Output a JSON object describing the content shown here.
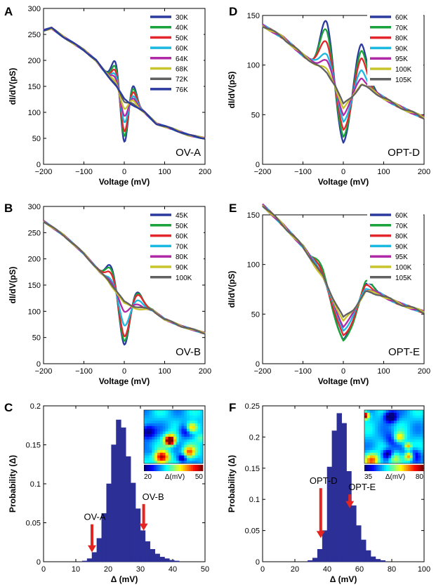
{
  "colors": {
    "axis": "#000000",
    "bar": "#2b2f96",
    "arrow": "#e32420",
    "series": [
      "#2b3a9e",
      "#1aa33a",
      "#e3262b",
      "#1bb8e0",
      "#b02aa8",
      "#c8c42c",
      "#616161",
      "#2b3a9e"
    ]
  },
  "chart_data": [
    {
      "panel": "A",
      "type": "line",
      "corner_label": "OV-A",
      "xlabel": "Voltage (mV)",
      "ylabel": "dI/dV(pS)",
      "xlim": [
        -200,
        200
      ],
      "ylim": [
        0,
        300
      ],
      "xticks": [
        -200,
        -100,
        0,
        100,
        200
      ],
      "yticks": [
        0,
        50,
        100,
        150,
        200,
        250,
        300
      ],
      "xtick_labels": [
        "−200",
        "−100",
        "0",
        "100",
        "200"
      ],
      "ytick_labels": [
        "0",
        "50",
        "100",
        "150",
        "200",
        "250",
        "300"
      ],
      "model": {
        "base": [
          [
            -200,
            258
          ],
          [
            -180,
            262
          ],
          [
            -150,
            245
          ],
          [
            -100,
            220
          ],
          [
            -70,
            200
          ],
          [
            -50,
            180
          ],
          [
            -35,
            165
          ],
          [
            -20,
            150
          ],
          [
            0,
            126
          ],
          [
            20,
            115
          ],
          [
            50,
            100
          ],
          [
            80,
            78
          ],
          [
            120,
            68
          ],
          [
            160,
            56
          ],
          [
            200,
            50
          ]
        ],
        "peak": [
          -20,
          10
        ],
        "dip": [
          0,
          10
        ],
        "peak2": [
          20,
          10
        ]
      },
      "series": [
        {
          "name": "30K",
          "peak": 55,
          "dip": 96,
          "peak2": 45
        },
        {
          "name": "40K",
          "peak": 45,
          "dip": 84,
          "peak2": 40
        },
        {
          "name": "50K",
          "peak": 35,
          "dip": 72,
          "peak2": 33
        },
        {
          "name": "60K",
          "peak": 24,
          "dip": 50,
          "peak2": 22
        },
        {
          "name": "64K",
          "peak": 17,
          "dip": 36,
          "peak2": 15
        },
        {
          "name": "68K",
          "peak": 10,
          "dip": 22,
          "peak2": 10
        },
        {
          "name": "72K",
          "peak": 4,
          "dip": 8,
          "peak2": 4
        },
        {
          "name": "76K",
          "peak": 0,
          "dip": 0,
          "peak2": 0
        }
      ]
    },
    {
      "panel": "D",
      "type": "line",
      "corner_label": "OPT-D",
      "xlabel": "Voltage (mV)",
      "ylabel": "dI/dV(pS)",
      "xlim": [
        -200,
        200
      ],
      "ylim": [
        0,
        150
      ],
      "xticks": [
        -200,
        -100,
        0,
        100,
        200
      ],
      "yticks": [
        0,
        50,
        100,
        150
      ],
      "xtick_labels": [
        "−200",
        "−100",
        "0",
        "100",
        "200"
      ],
      "ytick_labels": [
        "0",
        "50",
        "100",
        "150"
      ],
      "model": {
        "base": [
          [
            -200,
            140
          ],
          [
            -150,
            128
          ],
          [
            -100,
            110
          ],
          [
            -60,
            98
          ],
          [
            -40,
            92
          ],
          [
            -20,
            80
          ],
          [
            0,
            60
          ],
          [
            20,
            68
          ],
          [
            45,
            80
          ],
          [
            80,
            72
          ],
          [
            120,
            62
          ],
          [
            160,
            54
          ],
          [
            200,
            47
          ]
        ],
        "peak": [
          -42,
          15
        ],
        "dip": [
          0,
          17
        ],
        "peak2": [
          43,
          15
        ]
      },
      "series": [
        {
          "name": "60K",
          "peak": 52,
          "dip": 40,
          "peak2": 44
        },
        {
          "name": "70K",
          "peak": 44,
          "dip": 35,
          "peak2": 36
        },
        {
          "name": "80K",
          "peak": 33,
          "dip": 27,
          "peak2": 27
        },
        {
          "name": "90K",
          "peak": 20,
          "dip": 17,
          "peak2": 15
        },
        {
          "name": "95K",
          "peak": 12,
          "dip": 10,
          "peak2": 8
        },
        {
          "name": "100K",
          "peak": 3,
          "dip": 4,
          "peak2": 2
        },
        {
          "name": "105K",
          "peak": 0,
          "dip": 0,
          "peak2": 0
        }
      ]
    },
    {
      "panel": "B",
      "type": "line",
      "corner_label": "OV-B",
      "xlabel": "Voltage (mV)",
      "ylabel": "dI/dV(pS)",
      "xlim": [
        -200,
        200
      ],
      "ylim": [
        0,
        300
      ],
      "xticks": [
        -200,
        -100,
        0,
        100,
        200
      ],
      "yticks": [
        0,
        50,
        100,
        150,
        200,
        250,
        300
      ],
      "xtick_labels": [
        "−200",
        "−100",
        "0",
        "100",
        "200"
      ],
      "ytick_labels": [
        "0",
        "50",
        "100",
        "150",
        "200",
        "250",
        "300"
      ],
      "model": {
        "base": [
          [
            -200,
            272
          ],
          [
            -150,
            245
          ],
          [
            -100,
            210
          ],
          [
            -60,
            175
          ],
          [
            -40,
            160
          ],
          [
            -20,
            140
          ],
          [
            0,
            118
          ],
          [
            20,
            110
          ],
          [
            40,
            108
          ],
          [
            70,
            102
          ],
          [
            100,
            85
          ],
          [
            140,
            72
          ],
          [
            200,
            58
          ]
        ],
        "peak": [
          -32,
          12
        ],
        "dip": [
          0,
          12
        ],
        "peak2": [
          32,
          13
        ]
      },
      "series": [
        {
          "name": "45K",
          "peak": 34,
          "dip": 84,
          "peak2": 30
        },
        {
          "name": "50K",
          "peak": 30,
          "dip": 78,
          "peak2": 28
        },
        {
          "name": "60K",
          "peak": 22,
          "dip": 68,
          "peak2": 24
        },
        {
          "name": "70K",
          "peak": 8,
          "dip": 45,
          "peak2": 12
        },
        {
          "name": "80K",
          "peak": 2,
          "dip": 18,
          "peak2": 4
        },
        {
          "name": "90K",
          "peak": -4,
          "dip": 2,
          "peak2": -4
        },
        {
          "name": "100K",
          "peak": 0,
          "dip": 0,
          "peak2": 0
        }
      ]
    },
    {
      "panel": "E",
      "type": "line",
      "corner_label": "OPT-E",
      "xlabel": "Voltage (mV)",
      "ylabel": "dI/dV(pS)",
      "xlim": [
        -200,
        200
      ],
      "ylim": [
        0,
        150
      ],
      "xticks": [
        -200,
        -100,
        0,
        100,
        200
      ],
      "yticks": [
        0,
        50,
        100,
        150
      ],
      "xtick_labels": [
        "−200",
        "−100",
        "0",
        "100",
        "200"
      ],
      "ytick_labels": [
        "0",
        "50",
        "100",
        "150"
      ],
      "model": {
        "base": [
          [
            -200,
            160
          ],
          [
            -150,
            140
          ],
          [
            -100,
            118
          ],
          [
            -70,
            100
          ],
          [
            -50,
            88
          ],
          [
            -25,
            66
          ],
          [
            0,
            46
          ],
          [
            25,
            55
          ],
          [
            55,
            72
          ],
          [
            90,
            70
          ],
          [
            130,
            62
          ],
          [
            170,
            56
          ],
          [
            200,
            52
          ]
        ],
        "peak": [
          -58,
          16
        ],
        "dip": [
          0,
          24
        ],
        "peak2": [
          58,
          16
        ]
      },
      "series": [
        {
          "name": "60K",
          "peak": 7,
          "dip": 22,
          "peak2": 10
        },
        {
          "name": "70K",
          "peak": 9,
          "dip": 24,
          "peak2": 12
        },
        {
          "name": "80K",
          "peak": 5,
          "dip": 18,
          "peak2": 8
        },
        {
          "name": "90K",
          "peak": 2,
          "dip": 12,
          "peak2": 5
        },
        {
          "name": "95K",
          "peak": 0,
          "dip": 8,
          "peak2": 3
        },
        {
          "name": "100K",
          "peak": -2,
          "dip": 3,
          "peak2": 1
        },
        {
          "name": "105K",
          "peak": 0,
          "dip": 0,
          "peak2": 0
        }
      ]
    },
    {
      "panel": "C",
      "type": "bar",
      "xlabel": "Δ (mV)",
      "ylabel": "Probability (Δ)",
      "xlim": [
        0,
        50
      ],
      "ylim": [
        0,
        0.2
      ],
      "xticks": [
        0,
        10,
        20,
        30,
        40,
        50
      ],
      "yticks": [
        0,
        0.05,
        0.1,
        0.15,
        0.2
      ],
      "xtick_labels": [
        "0",
        "10",
        "20",
        "30",
        "40",
        "50"
      ],
      "ytick_labels": [
        "0",
        "0.05",
        "0.1",
        "0.15",
        "0.2"
      ],
      "bin_width": 1.5,
      "bins": [
        {
          "x": 12,
          "y": 0.001
        },
        {
          "x": 13.5,
          "y": 0.004
        },
        {
          "x": 15,
          "y": 0.012
        },
        {
          "x": 16.5,
          "y": 0.03
        },
        {
          "x": 18,
          "y": 0.062
        },
        {
          "x": 19.5,
          "y": 0.1
        },
        {
          "x": 21,
          "y": 0.15
        },
        {
          "x": 22.5,
          "y": 0.182
        },
        {
          "x": 24,
          "y": 0.172
        },
        {
          "x": 25.5,
          "y": 0.135
        },
        {
          "x": 27,
          "y": 0.101
        },
        {
          "x": 28.5,
          "y": 0.068
        },
        {
          "x": 30,
          "y": 0.04
        },
        {
          "x": 31.5,
          "y": 0.026
        },
        {
          "x": 33,
          "y": 0.016
        },
        {
          "x": 34.5,
          "y": 0.01
        },
        {
          "x": 36,
          "y": 0.006
        },
        {
          "x": 37.5,
          "y": 0.004
        },
        {
          "x": 39,
          "y": 0.002
        },
        {
          "x": 40.5,
          "y": 0.001
        }
      ],
      "arrows": [
        {
          "label": "OV-A",
          "x": 15,
          "y_tip": 0.012,
          "y_tail": 0.048
        },
        {
          "label": "OV-B",
          "x": 31,
          "y_tip": 0.04,
          "y_tail": 0.074
        }
      ],
      "inset": {
        "colorbar_labels": [
          "20",
          "Δ(mV)",
          "50"
        ],
        "seed": 11
      }
    },
    {
      "panel": "F",
      "type": "bar",
      "xlabel": "Δ (mV)",
      "ylabel": "Probability (Δ)",
      "xlim": [
        0,
        100
      ],
      "ylim": [
        0,
        0.25
      ],
      "xticks": [
        0,
        20,
        40,
        60,
        80,
        100
      ],
      "yticks": [
        0,
        0.05,
        0.1,
        0.15,
        0.2,
        0.25
      ],
      "xtick_labels": [
        "0",
        "20",
        "40",
        "60",
        "80",
        "100"
      ],
      "ytick_labels": [
        "0",
        "0.05",
        "0.1",
        "0.15",
        "0.2",
        "0.25"
      ],
      "bin_width": 3,
      "bins": [
        {
          "x": 28,
          "y": 0.002
        },
        {
          "x": 31,
          "y": 0.006
        },
        {
          "x": 34,
          "y": 0.02
        },
        {
          "x": 37,
          "y": 0.05
        },
        {
          "x": 40,
          "y": 0.152
        },
        {
          "x": 43,
          "y": 0.21
        },
        {
          "x": 46,
          "y": 0.238
        },
        {
          "x": 49,
          "y": 0.222
        },
        {
          "x": 52,
          "y": 0.145
        },
        {
          "x": 55,
          "y": 0.09
        },
        {
          "x": 58,
          "y": 0.058
        },
        {
          "x": 61,
          "y": 0.035
        },
        {
          "x": 64,
          "y": 0.018
        },
        {
          "x": 67,
          "y": 0.008
        },
        {
          "x": 70,
          "y": 0.004
        },
        {
          "x": 73,
          "y": 0.002
        }
      ],
      "arrows": [
        {
          "label": "OPT-D",
          "x": 36,
          "y_tip": 0.038,
          "y_tail": 0.118
        },
        {
          "label": "OPT-E",
          "x": 54,
          "y_tip": 0.086,
          "y_tail": 0.108
        }
      ],
      "inset": {
        "colorbar_labels": [
          "35",
          "Δ(mV)",
          "80"
        ],
        "seed": 23
      }
    }
  ]
}
